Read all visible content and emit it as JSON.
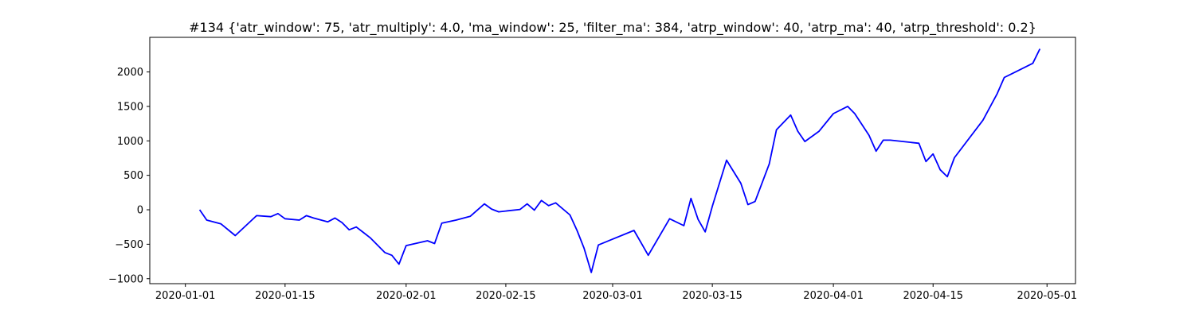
{
  "chart_data": {
    "type": "line",
    "title": "#134 {'atr_window': 75, 'atr_multiply': 4.0, 'ma_window': 25, 'filter_ma': 384, 'atrp_window': 40, 'atrp_ma': 40, 'atrp_threshold': 0.2}",
    "x": [
      "2020-01-03",
      "2020-01-04",
      "2020-01-06",
      "2020-01-08",
      "2020-01-11",
      "2020-01-13",
      "2020-01-14",
      "2020-01-15",
      "2020-01-17",
      "2020-01-18",
      "2020-01-19",
      "2020-01-21",
      "2020-01-22",
      "2020-01-23",
      "2020-01-24",
      "2020-01-25",
      "2020-01-26",
      "2020-01-27",
      "2020-01-29",
      "2020-01-30",
      "2020-01-31",
      "2020-02-01",
      "2020-02-04",
      "2020-02-05",
      "2020-02-06",
      "2020-02-08",
      "2020-02-10",
      "2020-02-12",
      "2020-02-13",
      "2020-02-14",
      "2020-02-17",
      "2020-02-18",
      "2020-02-19",
      "2020-02-20",
      "2020-02-21",
      "2020-02-22",
      "2020-02-24",
      "2020-02-25",
      "2020-02-26",
      "2020-02-27",
      "2020-02-28",
      "2020-03-04",
      "2020-03-05",
      "2020-03-06",
      "2020-03-09",
      "2020-03-11",
      "2020-03-12",
      "2020-03-13",
      "2020-03-14",
      "2020-03-15",
      "2020-03-17",
      "2020-03-19",
      "2020-03-20",
      "2020-03-21",
      "2020-03-23",
      "2020-03-24",
      "2020-03-26",
      "2020-03-27",
      "2020-03-28",
      "2020-03-30",
      "2020-04-01",
      "2020-04-03",
      "2020-04-04",
      "2020-04-06",
      "2020-04-07",
      "2020-04-08",
      "2020-04-09",
      "2020-04-13",
      "2020-04-14",
      "2020-04-15",
      "2020-04-16",
      "2020-04-17",
      "2020-04-18",
      "2020-04-22",
      "2020-04-24",
      "2020-04-25",
      "2020-04-29",
      "2020-04-30"
    ],
    "series": [
      {
        "color": "#0000ff",
        "values": [
          0,
          -150,
          -205,
          -375,
          -85,
          -100,
          -55,
          -130,
          -150,
          -85,
          -120,
          -175,
          -120,
          -185,
          -290,
          -250,
          -330,
          -410,
          -620,
          -660,
          -790,
          -520,
          -450,
          -490,
          -195,
          -150,
          -95,
          85,
          10,
          -30,
          5,
          85,
          -5,
          135,
          60,
          100,
          -75,
          -300,
          -560,
          -910,
          -510,
          -300,
          -480,
          -660,
          -130,
          -230,
          165,
          -140,
          -320,
          50,
          720,
          385,
          75,
          120,
          665,
          1160,
          1375,
          1140,
          990,
          1140,
          1395,
          1500,
          1395,
          1080,
          850,
          1010,
          1010,
          965,
          700,
          810,
          580,
          480,
          755,
          1300,
          1685,
          1920,
          2125,
          2335
        ]
      }
    ],
    "xlim": [
      "2019-12-27",
      "2020-05-05"
    ],
    "xticks": [
      "2020-01-01",
      "2020-01-15",
      "2020-02-01",
      "2020-02-15",
      "2020-03-01",
      "2020-03-15",
      "2020-04-01",
      "2020-04-15",
      "2020-05-01"
    ],
    "ylim": [
      -1072,
      2502
    ],
    "yticks": [
      {
        "value": -1000,
        "label": "−1000"
      },
      {
        "value": -500,
        "label": "−500"
      },
      0,
      500,
      1000,
      1500,
      2000
    ]
  }
}
